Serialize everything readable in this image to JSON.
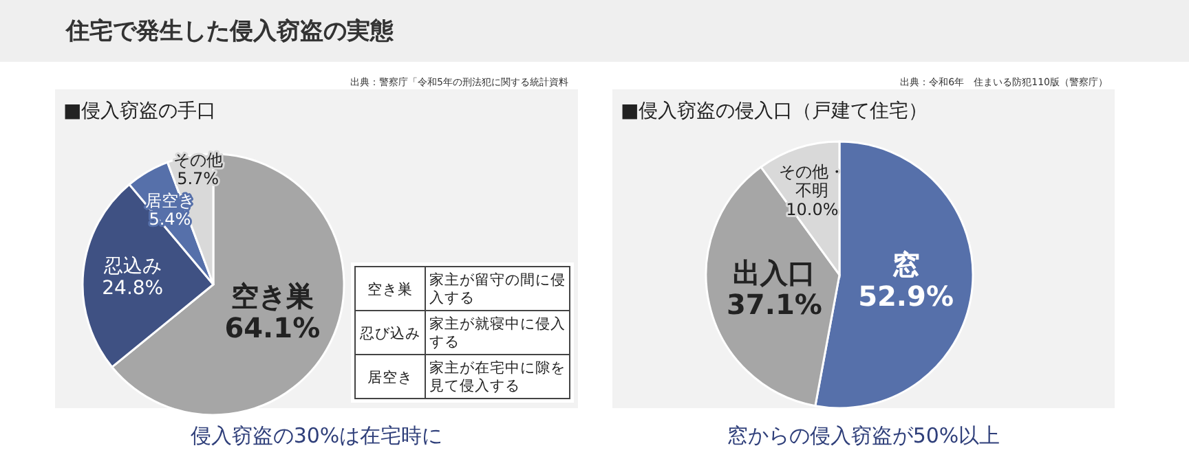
{
  "chart_data": [
    {
      "type": "pie",
      "title": "■侵入窃盗の手口",
      "categories": [
        "空き巣",
        "忍込み",
        "居空き",
        "その他"
      ],
      "values": [
        64.1,
        24.8,
        5.4,
        5.7
      ],
      "value_labels": [
        "64.1%",
        "24.8%",
        "5.4%",
        "5.7%"
      ],
      "colors": [
        "#a6a6a6",
        "#3f5183",
        "#5670aa",
        "#d9d9d9"
      ],
      "annotations": [
        "住宅で発生した侵入窃盗の実態",
        "出典：警察庁「令和5年の刑法犯に関する統計資料",
        "空き巣",
        "家主が留守の間に侵入する",
        "忍び込み",
        "家主が就寝中に侵入する",
        "居空き",
        "家主が在宅中に隙を見て侵入する",
        "侵入窃盗の30%は在宅時に"
      ]
    },
    {
      "type": "pie",
      "title": "■侵入窃盗の侵入口（戸建て住宅）",
      "categories": [
        "窓",
        "出入口",
        "その他・不明"
      ],
      "values": [
        52.9,
        37.1,
        10.0
      ],
      "value_labels": [
        "52.9%",
        "37.1%",
        "10.0%"
      ],
      "colors": [
        "#5670aa",
        "#a6a6a6",
        "#d9d9d9"
      ],
      "annotations": [
        "出典：令和6年　住まいる防犯110版（警察庁）",
        "窓からの侵入窃盗が50%以上"
      ]
    }
  ]
}
